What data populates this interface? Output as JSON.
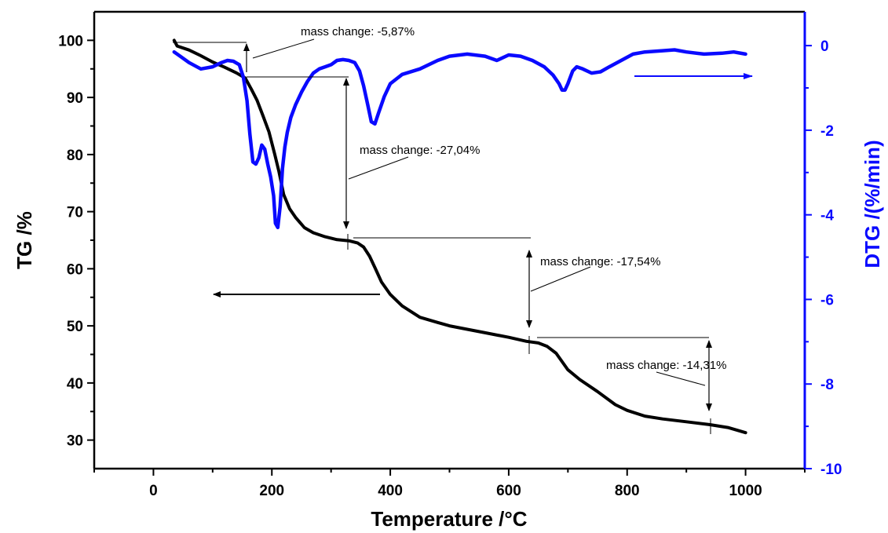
{
  "chart_data": {
    "type": "line",
    "xlabel": "Temperature /°C",
    "ylabel_left": "TG /%",
    "ylabel_right": "DTG /(%/min)",
    "xlim": [
      -100,
      1100
    ],
    "ylim_left": [
      25,
      105
    ],
    "ylim_right": [
      -10,
      0.8
    ],
    "x_ticks": [
      0,
      200,
      400,
      600,
      800,
      1000
    ],
    "y_left_ticks": [
      30,
      40,
      50,
      60,
      70,
      80,
      90,
      100
    ],
    "y_right_ticks": [
      0,
      -2,
      -4,
      -6,
      -8,
      -10
    ],
    "grid": false,
    "legend": "none",
    "colors": {
      "tg": "#000000",
      "dtg": "#0a0aff",
      "axis_right": "#0a0aff"
    },
    "series": [
      {
        "axis": "left",
        "x": [
          35,
          40,
          60,
          80,
          100,
          120,
          140,
          155,
          165,
          175,
          185,
          195,
          205,
          212,
          220,
          230,
          240,
          255,
          270,
          290,
          310,
          330,
          345,
          355,
          365,
          375,
          385,
          400,
          420,
          450,
          480,
          500,
          530,
          560,
          600,
          630,
          650,
          665,
          680,
          700,
          720,
          750,
          780,
          800,
          830,
          860,
          900,
          940,
          970,
          1000
        ],
        "values": [
          100,
          99,
          98.3,
          97.3,
          96.2,
          95.3,
          94.3,
          93.4,
          91.5,
          89.5,
          86.8,
          84,
          80,
          77,
          73,
          70.5,
          69,
          67.2,
          66.3,
          65.6,
          65.1,
          64.9,
          64.5,
          63.8,
          62.2,
          60,
          57.7,
          55.5,
          53.5,
          51.5,
          50.6,
          50,
          49.4,
          48.8,
          48,
          47.3,
          47,
          46.4,
          45.2,
          42.3,
          40.6,
          38.5,
          36.2,
          35.2,
          34.2,
          33.7,
          33.2,
          32.7,
          32.2,
          31.3
        ]
      },
      {
        "axis": "right",
        "x": [
          35,
          45,
          60,
          80,
          100,
          115,
          125,
          135,
          145,
          152,
          158,
          163,
          168,
          173,
          178,
          183,
          188,
          193,
          198,
          203,
          206,
          210,
          214,
          218,
          222,
          226,
          232,
          240,
          250,
          260,
          270,
          280,
          290,
          300,
          310,
          320,
          330,
          340,
          348,
          355,
          362,
          368,
          374,
          380,
          390,
          400,
          420,
          450,
          480,
          500,
          530,
          560,
          580,
          600,
          620,
          640,
          660,
          675,
          685,
          690,
          695,
          700,
          708,
          715,
          725,
          740,
          755,
          770,
          790,
          810,
          830,
          860,
          880,
          900,
          930,
          960,
          980,
          1000
        ],
        "values": [
          -0.15,
          -0.25,
          -0.4,
          -0.55,
          -0.5,
          -0.4,
          -0.35,
          -0.37,
          -0.45,
          -0.75,
          -1.3,
          -2.1,
          -2.75,
          -2.8,
          -2.65,
          -2.35,
          -2.45,
          -2.8,
          -3.1,
          -3.55,
          -4.2,
          -4.3,
          -3.8,
          -2.9,
          -2.4,
          -2.05,
          -1.7,
          -1.4,
          -1.1,
          -0.85,
          -0.65,
          -0.55,
          -0.5,
          -0.45,
          -0.35,
          -0.33,
          -0.35,
          -0.4,
          -0.6,
          -0.95,
          -1.4,
          -1.8,
          -1.85,
          -1.6,
          -1.2,
          -0.9,
          -0.68,
          -0.55,
          -0.35,
          -0.25,
          -0.2,
          -0.25,
          -0.35,
          -0.22,
          -0.25,
          -0.35,
          -0.5,
          -0.7,
          -0.9,
          -1.05,
          -1.05,
          -0.9,
          -0.6,
          -0.5,
          -0.55,
          -0.65,
          -0.62,
          -0.5,
          -0.35,
          -0.2,
          -0.15,
          -0.12,
          -0.1,
          -0.15,
          -0.2,
          -0.18,
          -0.15,
          -0.2
        ]
      }
    ],
    "annotations": [
      {
        "label": "mass change: -5,87%"
      },
      {
        "label": "mass change: -27,04%"
      },
      {
        "label": "mass change: -17,54%"
      },
      {
        "label": "mass change: -14,31%"
      }
    ]
  }
}
